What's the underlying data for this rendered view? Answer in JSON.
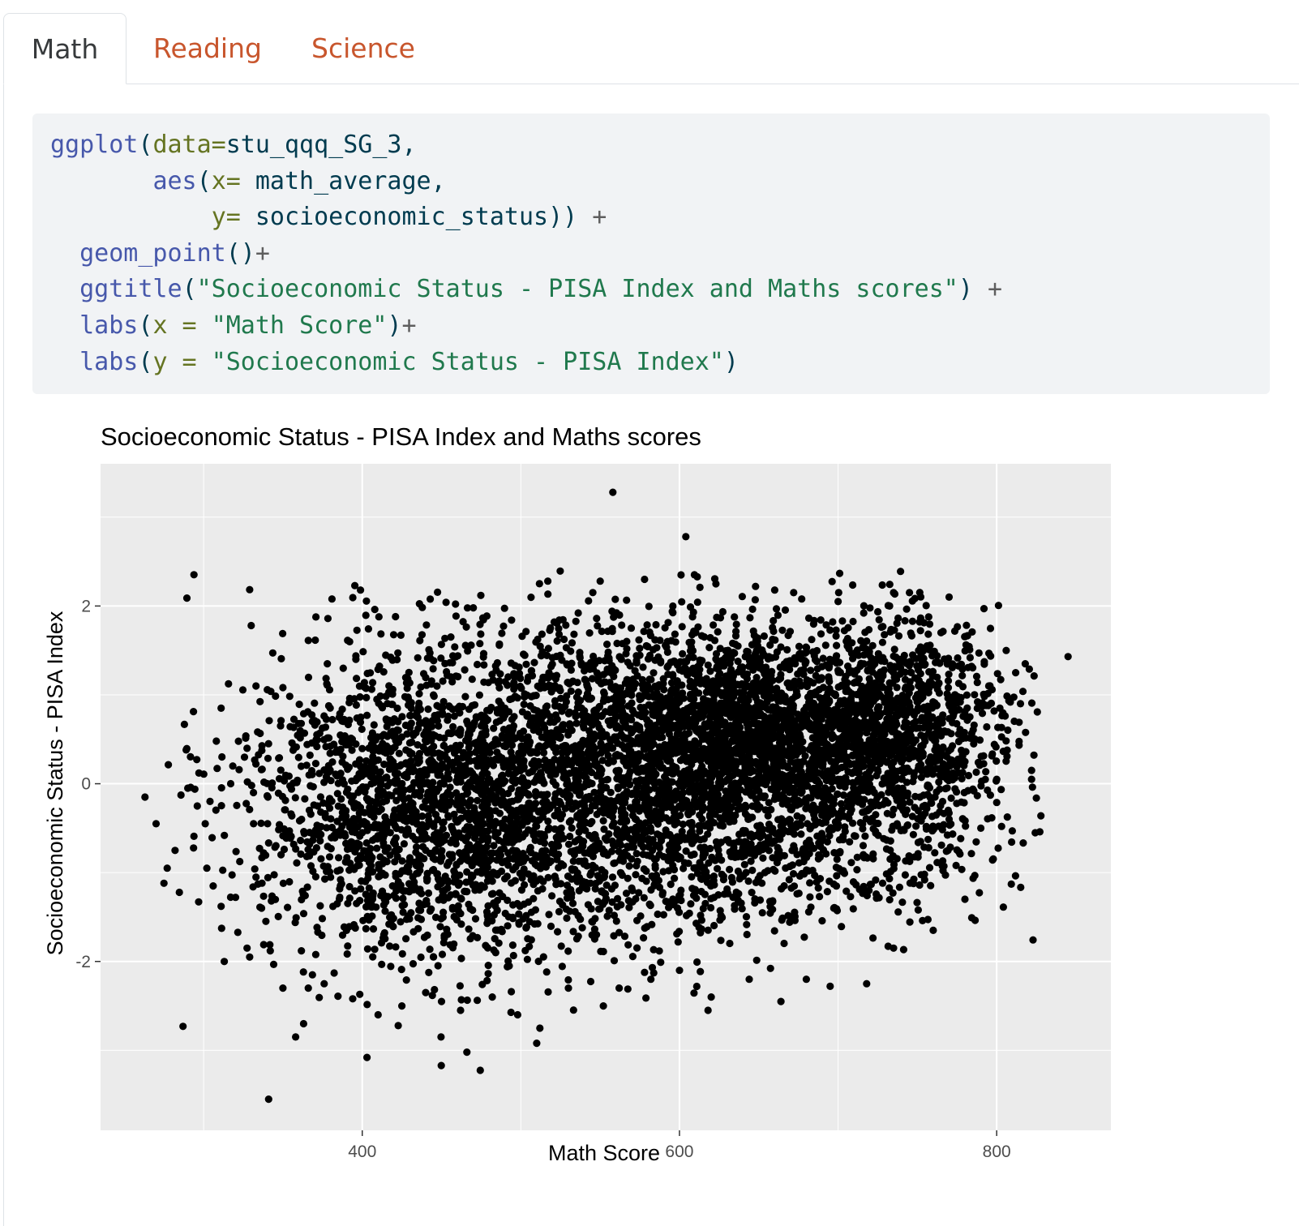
{
  "tabs": [
    {
      "label": "Math",
      "active": true
    },
    {
      "label": "Reading",
      "active": false
    },
    {
      "label": "Science",
      "active": false
    }
  ],
  "code": {
    "lines": [
      [
        {
          "t": "fn",
          "s": "ggplot"
        },
        {
          "t": "p",
          "s": "("
        },
        {
          "t": "arg",
          "s": "data="
        },
        {
          "t": "p",
          "s": "stu_qqq_SG_3,"
        }
      ],
      [
        {
          "t": "p",
          "s": "       "
        },
        {
          "t": "fn",
          "s": "aes"
        },
        {
          "t": "p",
          "s": "("
        },
        {
          "t": "arg",
          "s": "x="
        },
        {
          "t": "p",
          "s": " math_average,"
        }
      ],
      [
        {
          "t": "p",
          "s": "           "
        },
        {
          "t": "arg",
          "s": "y="
        },
        {
          "t": "p",
          "s": " socioeconomic_status)) "
        },
        {
          "t": "op",
          "s": "+"
        }
      ],
      [
        {
          "t": "p",
          "s": "  "
        },
        {
          "t": "fn",
          "s": "geom_point"
        },
        {
          "t": "p",
          "s": "()"
        },
        {
          "t": "op",
          "s": "+"
        }
      ],
      [
        {
          "t": "p",
          "s": "  "
        },
        {
          "t": "fn",
          "s": "ggtitle"
        },
        {
          "t": "p",
          "s": "("
        },
        {
          "t": "str",
          "s": "\"Socioeconomic Status - PISA Index and Maths scores\""
        },
        {
          "t": "p",
          "s": ") "
        },
        {
          "t": "op",
          "s": "+"
        }
      ],
      [
        {
          "t": "p",
          "s": "  "
        },
        {
          "t": "fn",
          "s": "labs"
        },
        {
          "t": "p",
          "s": "("
        },
        {
          "t": "arg",
          "s": "x ="
        },
        {
          "t": "p",
          "s": " "
        },
        {
          "t": "str",
          "s": "\"Math Score\""
        },
        {
          "t": "p",
          "s": ")"
        },
        {
          "t": "op",
          "s": "+"
        }
      ],
      [
        {
          "t": "p",
          "s": "  "
        },
        {
          "t": "fn",
          "s": "labs"
        },
        {
          "t": "p",
          "s": "("
        },
        {
          "t": "arg",
          "s": "y ="
        },
        {
          "t": "p",
          "s": " "
        },
        {
          "t": "str",
          "s": "\"Socioeconomic Status - PISA Index\""
        },
        {
          "t": "p",
          "s": ")"
        }
      ]
    ]
  },
  "chart_data": {
    "type": "scatter",
    "title": "Socioeconomic Status - PISA Index and Maths scores",
    "xlabel": "Math Score",
    "ylabel": "Socioeconomic Status - PISA Index",
    "xlim": [
      235,
      872
    ],
    "ylim": [
      -3.9,
      3.6
    ],
    "x_ticks": [
      400,
      600,
      800
    ],
    "y_ticks": [
      -2,
      0,
      2
    ],
    "grid": true,
    "panel_color": "#ebebeb",
    "point_color": "#000000",
    "points": [
      [
        558,
        3.28
      ],
      [
        604,
        2.78
      ],
      [
        330,
        1.78
      ],
      [
        341,
        -3.55
      ],
      [
        403,
        -3.08
      ],
      [
        466,
        -3.02
      ],
      [
        510,
        -2.92
      ],
      [
        263,
        -0.15
      ],
      [
        287,
        -2.73
      ],
      [
        845,
        1.43
      ],
      [
        822,
        0.15
      ],
      [
        822,
        0.05
      ],
      [
        800,
        0.05
      ],
      [
        792,
        1.97
      ],
      [
        770,
        2.1
      ],
      [
        745,
        2.15
      ],
      [
        735,
        2.15
      ],
      [
        700,
        2.05
      ],
      [
        672,
        2.15
      ],
      [
        648,
        2.22
      ],
      [
        623,
        2.25
      ],
      [
        601,
        2.35
      ],
      [
        578,
        2.3
      ],
      [
        550,
        2.28
      ],
      [
        517,
        2.28
      ],
      [
        470,
        1.98
      ],
      [
        421,
        1.88
      ],
      [
        396,
        1.4
      ],
      [
        378,
        1.35
      ],
      [
        388,
        1.3
      ],
      [
        333,
        1.1
      ],
      [
        311,
        0.85
      ],
      [
        289,
        0.38
      ],
      [
        308,
        0.48
      ],
      [
        297,
        0.12
      ],
      [
        290,
        -0.05
      ],
      [
        270,
        -0.45
      ],
      [
        277,
        -0.95
      ],
      [
        275,
        -1.12
      ],
      [
        282,
        -0.75
      ],
      [
        296,
        -0.25
      ],
      [
        301,
        -0.45
      ],
      [
        302,
        -0.95
      ],
      [
        306,
        -1.15
      ],
      [
        311,
        -1.38
      ],
      [
        313,
        -2.0
      ],
      [
        329,
        -1.95
      ],
      [
        342,
        -1.88
      ],
      [
        350,
        -2.3
      ],
      [
        358,
        -2.85
      ],
      [
        363,
        -2.7
      ],
      [
        366,
        -2.3
      ],
      [
        376,
        -2.25
      ],
      [
        394,
        -2.42
      ],
      [
        410,
        -2.6
      ],
      [
        425,
        -2.5
      ],
      [
        440,
        -2.35
      ],
      [
        450,
        -2.45
      ],
      [
        462,
        -2.55
      ],
      [
        482,
        -2.4
      ],
      [
        498,
        -2.6
      ],
      [
        512,
        -2.75
      ],
      [
        530,
        -2.3
      ],
      [
        552,
        -2.5
      ],
      [
        562,
        -2.3
      ],
      [
        582,
        -2.2
      ],
      [
        600,
        -2.1
      ],
      [
        620,
        -2.4
      ],
      [
        618,
        -2.55
      ],
      [
        644,
        -2.2
      ],
      [
        664,
        -2.45
      ],
      [
        680,
        -2.2
      ],
      [
        695,
        -2.28
      ],
      [
        718,
        -2.25
      ],
      [
        735,
        -1.85
      ],
      [
        760,
        -1.65
      ],
      [
        780,
        -1.3
      ],
      [
        790,
        -0.5
      ],
      [
        770,
        -0.4
      ],
      [
        752,
        -0.65
      ],
      [
        780,
        0.25
      ],
      [
        782,
        0.75
      ],
      [
        806,
        1.5
      ],
      [
        812,
        1.25
      ],
      [
        815,
        0.9
      ],
      [
        818,
        1.35
      ],
      [
        795,
        1.1
      ],
      [
        802,
        0.85
      ]
    ],
    "clusters": [
      {
        "cx": 640,
        "cy": 0.55,
        "sx": 70,
        "sy": 0.55,
        "n": 1700
      },
      {
        "cx": 560,
        "cy": 0.3,
        "sx": 80,
        "sy": 0.85,
        "n": 1400
      },
      {
        "cx": 690,
        "cy": 0.45,
        "sx": 60,
        "sy": 0.7,
        "n": 900
      },
      {
        "cx": 470,
        "cy": -0.35,
        "sx": 60,
        "sy": 0.85,
        "n": 1200
      },
      {
        "cx": 400,
        "cy": -0.2,
        "sx": 45,
        "sy": 0.8,
        "n": 600
      },
      {
        "cx": 740,
        "cy": 0.7,
        "sx": 30,
        "sy": 0.6,
        "n": 400
      },
      {
        "cx": 610,
        "cy": -0.8,
        "sx": 90,
        "sy": 0.55,
        "n": 700
      }
    ]
  }
}
